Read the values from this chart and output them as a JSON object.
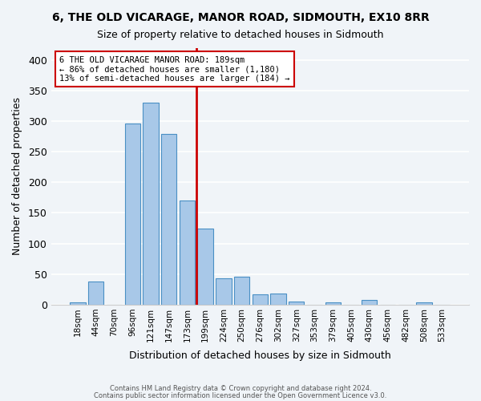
{
  "title": "6, THE OLD VICARAGE, MANOR ROAD, SIDMOUTH, EX10 8RR",
  "subtitle": "Size of property relative to detached houses in Sidmouth",
  "xlabel": "Distribution of detached houses by size in Sidmouth",
  "ylabel": "Number of detached properties",
  "bar_color": "#a8c8e8",
  "bar_edge_color": "#4a90c4",
  "bin_labels": [
    "18sqm",
    "44sqm",
    "70sqm",
    "96sqm",
    "121sqm",
    "147sqm",
    "173sqm",
    "199sqm",
    "224sqm",
    "250sqm",
    "276sqm",
    "302sqm",
    "327sqm",
    "353sqm",
    "379sqm",
    "405sqm",
    "430sqm",
    "456sqm",
    "482sqm",
    "508sqm",
    "533sqm"
  ],
  "bar_heights": [
    3,
    37,
    0,
    297,
    330,
    280,
    170,
    124,
    43,
    46,
    17,
    18,
    5,
    0,
    4,
    0,
    7,
    0,
    0,
    3,
    0
  ],
  "vline_x": 6.5,
  "vline_color": "#cc0000",
  "ylim": [
    0,
    420
  ],
  "yticks": [
    0,
    50,
    100,
    150,
    200,
    250,
    300,
    350,
    400
  ],
  "annotation_title": "6 THE OLD VICARAGE MANOR ROAD: 189sqm",
  "annotation_line1": "← 86% of detached houses are smaller (1,180)",
  "annotation_line2": "13% of semi-detached houses are larger (184) →",
  "footer1": "Contains HM Land Registry data © Crown copyright and database right 2024.",
  "footer2": "Contains public sector information licensed under the Open Government Licence v3.0.",
  "background_color": "#f0f4f8",
  "annotation_box_color": "#ffffff",
  "annotation_box_edge": "#cc0000"
}
